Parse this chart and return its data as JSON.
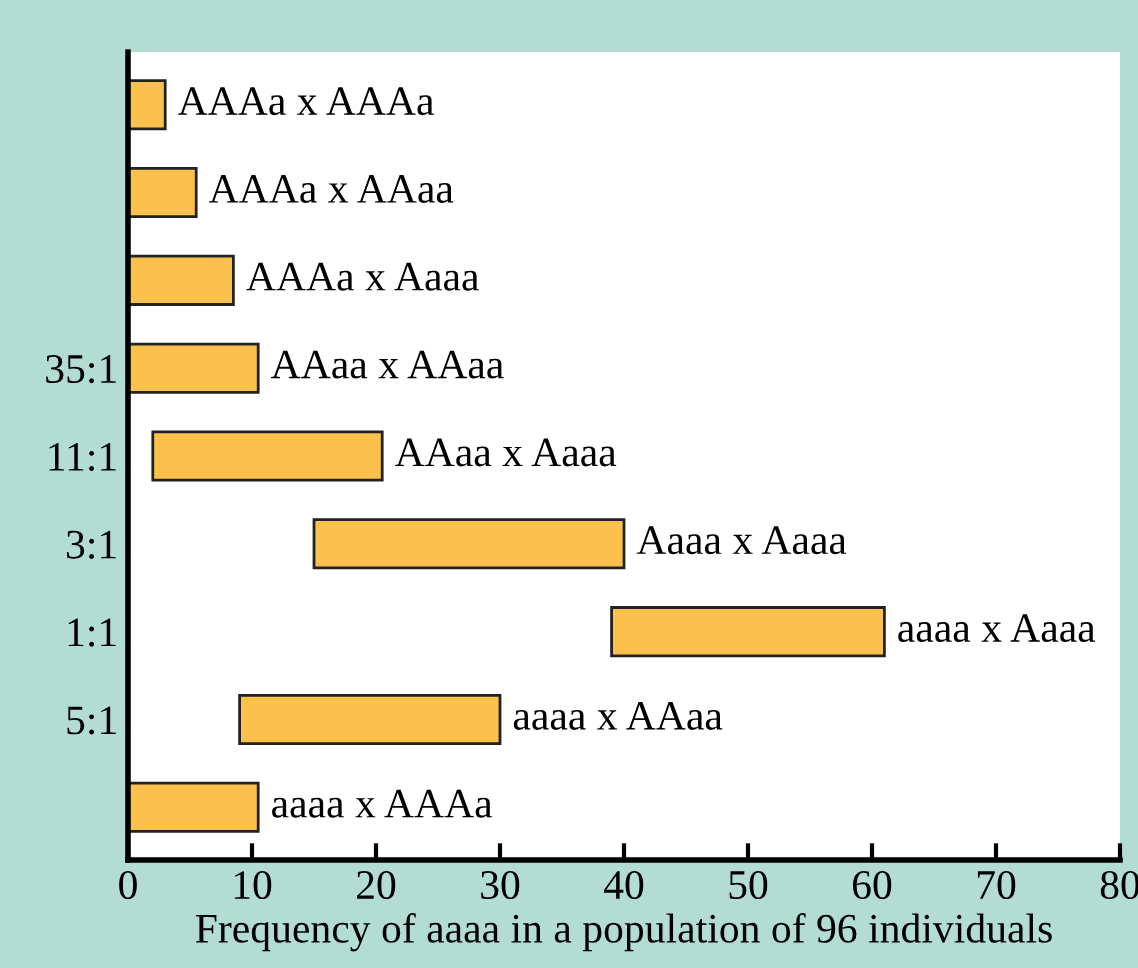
{
  "chart_data": {
    "type": "bar",
    "orientation": "horizontal",
    "xlabel": "Frequency of aaaa in a population of 96 individuals",
    "categories": [
      null,
      null,
      null,
      "35:1",
      "11:1",
      "3:1",
      "1:1",
      "5:1",
      null
    ],
    "base": [
      0,
      0,
      0,
      0,
      2,
      15,
      39,
      9,
      0
    ],
    "values": [
      3,
      5.5,
      8.5,
      10.5,
      18.5,
      25,
      22,
      21,
      10.5
    ],
    "color": "#fcc04c",
    "annotations": [
      "AAAa x AAAa",
      "AAAa x AAaa",
      "AAAa x Aaaa",
      "AAaa x AAaa",
      "AAaa x Aaaa",
      "Aaaa x Aaaa",
      "aaaa x Aaaa",
      "aaaa x AAaa",
      "aaaa x AAAa"
    ],
    "xlim": [
      0,
      80
    ],
    "xticks": [
      0,
      10,
      20,
      30,
      40,
      50,
      60,
      70,
      80
    ],
    "grid": false,
    "legend": false
  }
}
